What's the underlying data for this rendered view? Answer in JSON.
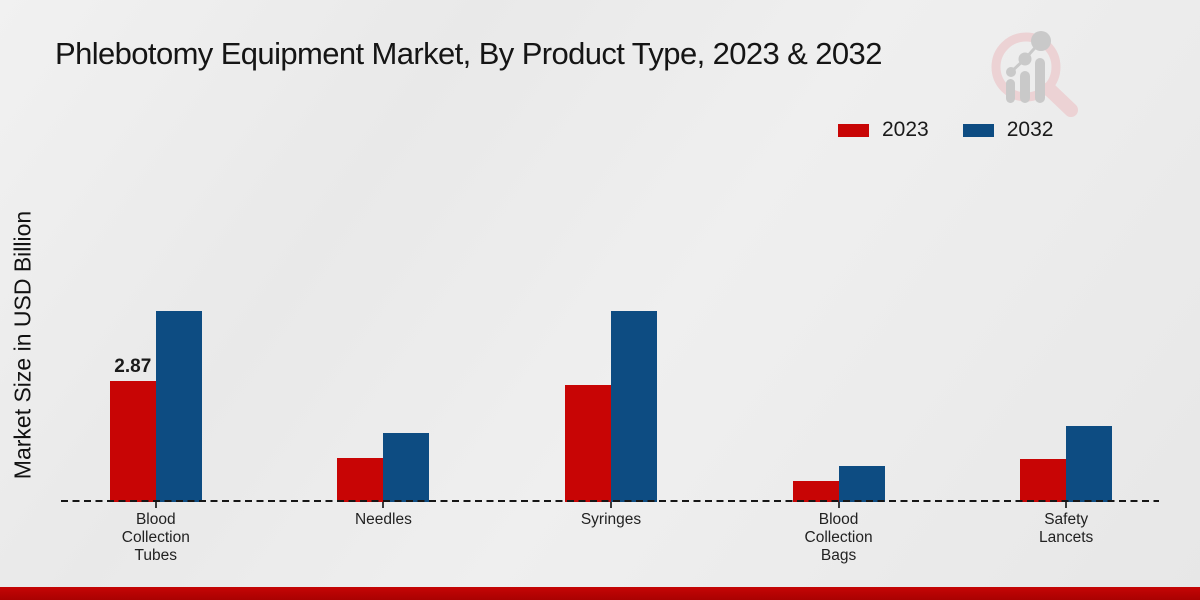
{
  "page": {
    "title": "Phlebotomy Equipment Market, By Product Type, 2023 & 2032",
    "ylabel": "Market Size in USD Billion",
    "background_color": "#ececec",
    "accent_strip_color": "#b40303"
  },
  "legend": {
    "position": "top-right",
    "items": [
      {
        "label": "2023",
        "color": "#c80505"
      },
      {
        "label": "2032",
        "color": "#0d4c82"
      }
    ]
  },
  "logo": {
    "name": "magnifier-bar-chart-watermark",
    "ring_color": "#ecd2d4",
    "glyph_color": "#c9c9c9"
  },
  "chart_data": {
    "type": "bar",
    "title": "Phlebotomy Equipment Market, By Product Type, 2023 & 2032",
    "xlabel": "",
    "ylabel": "Market Size in USD Billion",
    "unit": "USD Billion",
    "categories": [
      "Blood Collection Tubes",
      "Needles",
      "Syringes",
      "Blood Collection Bags",
      "Safety Lancets"
    ],
    "category_lines": [
      [
        "Blood",
        "Collection",
        "Tubes"
      ],
      [
        "Needles"
      ],
      [
        "Syringes"
      ],
      [
        "Blood",
        "Collection",
        "Bags"
      ],
      [
        "Safety",
        "Lancets"
      ]
    ],
    "series": [
      {
        "name": "2023",
        "color": "#c80505",
        "values": [
          2.87,
          1.05,
          2.78,
          0.51,
          1.03
        ],
        "data_labels": [
          "2.87",
          "",
          "",
          "",
          ""
        ]
      },
      {
        "name": "2032",
        "color": "#0d4c82",
        "values": [
          4.54,
          1.65,
          4.54,
          0.85,
          1.81
        ],
        "data_labels": [
          "",
          "",
          "",
          "",
          ""
        ]
      }
    ],
    "ylim": [
      0,
      5
    ],
    "grid": false,
    "baseline_style": "dashed",
    "legend_position": "top-right"
  }
}
